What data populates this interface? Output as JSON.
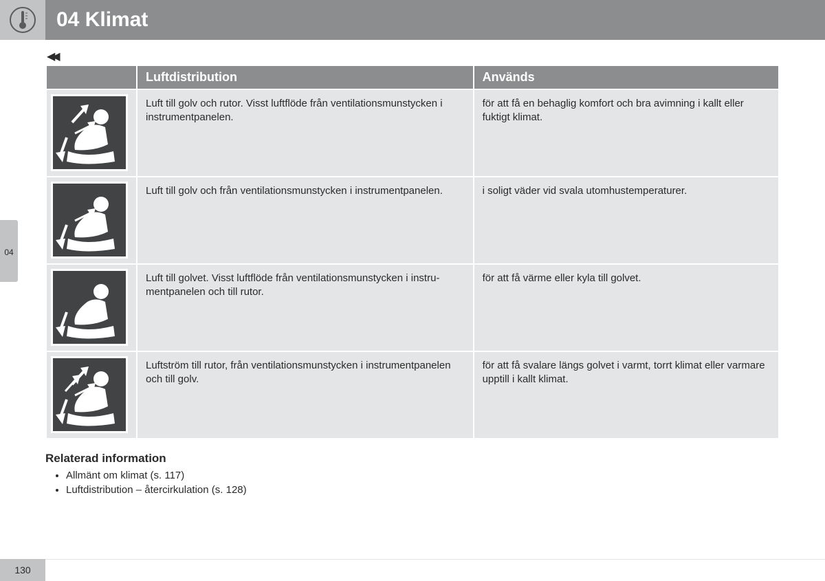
{
  "header": {
    "title": "04 Klimat",
    "side_tab": "04"
  },
  "table": {
    "columns": {
      "icon": "",
      "distribution": "Luftdistribution",
      "usage": "Används"
    },
    "rows": [
      {
        "icon": {
          "arrow_up": true,
          "arrow_dash": true,
          "arrow_down": true
        },
        "distribution": "Luft till golv och rutor. Visst luftflöde från ventilationsmunstycken i instrumentpanelen.",
        "usage": "för att få en behaglig komfort och bra avimning i kallt eller fuktigt klimat."
      },
      {
        "icon": {
          "arrow_up": false,
          "arrow_dash": true,
          "arrow_down": true
        },
        "distribution": "Luft till golv och från ventilationsmunstycken i instrumentpanelen.",
        "usage": "i soligt väder vid svala utomhustemperaturer."
      },
      {
        "icon": {
          "arrow_up": false,
          "arrow_dash": false,
          "arrow_down": true
        },
        "distribution": "Luft till golvet. Visst luftflöde från ventilationsmunstycken i instru­mentpanelen och till rutor.",
        "usage": "för att få värme eller kyla till golvet."
      },
      {
        "icon": {
          "arrow_up": true,
          "arrow_dash": true,
          "arrow_down": true,
          "extra_up": true
        },
        "distribution": "Luftström till rutor, från ventilationsmunstycken i instrumentpanelen och till golv.",
        "usage": "för att få svalare längs golvet i varmt, torrt klimat eller varmare upptill i kallt klimat."
      }
    ]
  },
  "related": {
    "heading": "Relaterad information",
    "items": [
      "Allmänt om klimat (s. 117)",
      "Luftdistribution – återcirkulation (s. 128)"
    ]
  },
  "page_number": "130"
}
